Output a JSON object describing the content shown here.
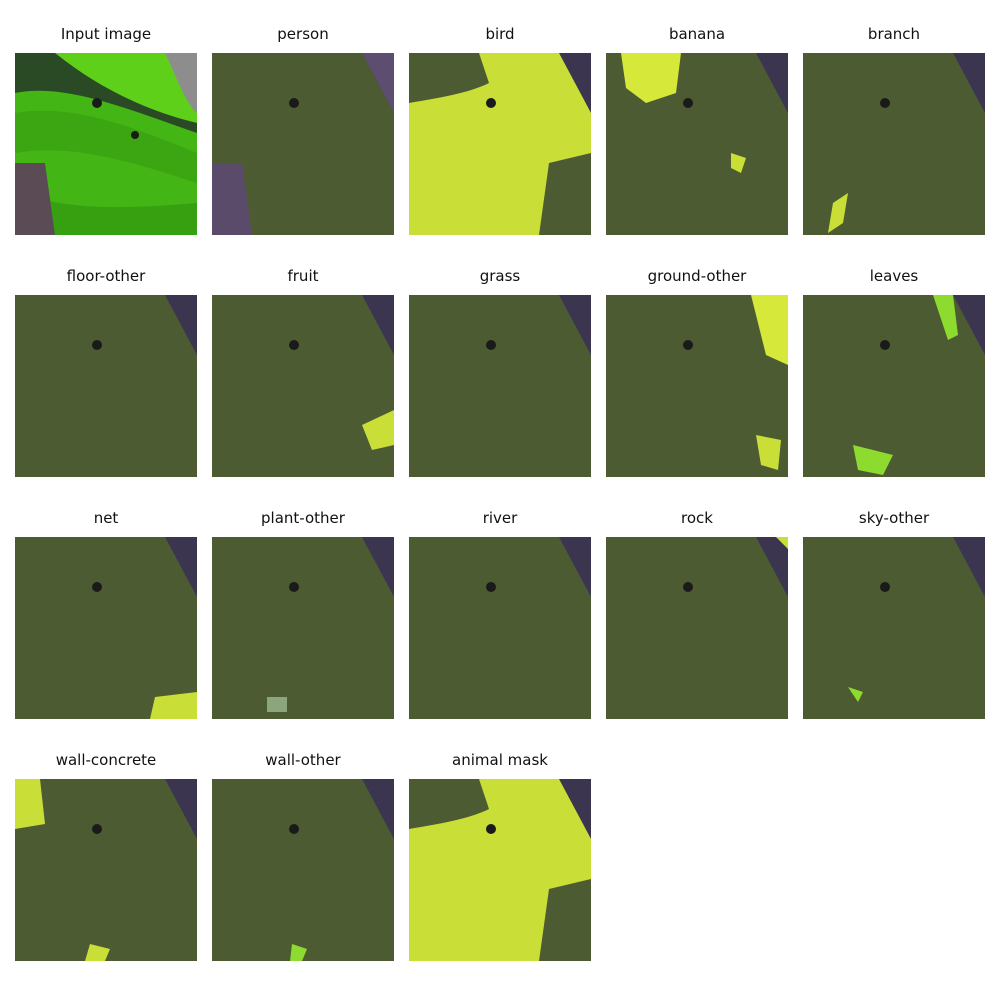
{
  "panels": [
    {
      "title": "Input image",
      "kind": "input"
    },
    {
      "title": "person",
      "kind": "mask"
    },
    {
      "title": "bird",
      "kind": "mask"
    },
    {
      "title": "banana",
      "kind": "mask"
    },
    {
      "title": "branch",
      "kind": "mask"
    },
    {
      "title": "floor-other",
      "kind": "mask"
    },
    {
      "title": "fruit",
      "kind": "mask"
    },
    {
      "title": "grass",
      "kind": "mask"
    },
    {
      "title": "ground-other",
      "kind": "mask"
    },
    {
      "title": "leaves",
      "kind": "mask"
    },
    {
      "title": "net",
      "kind": "mask"
    },
    {
      "title": "plant-other",
      "kind": "mask"
    },
    {
      "title": "river",
      "kind": "mask"
    },
    {
      "title": "rock",
      "kind": "mask"
    },
    {
      "title": "sky-other",
      "kind": "mask"
    },
    {
      "title": "wall-concrete",
      "kind": "mask"
    },
    {
      "title": "wall-other",
      "kind": "mask"
    },
    {
      "title": "animal mask",
      "kind": "mask"
    }
  ],
  "colors": {
    "snake_bright": "#3fbf12",
    "snake_dark": "#2f7d14",
    "overlay_bg": "#3b3550",
    "overlay_snake": "#4d5b33",
    "mask_highlight": "#d6e83a",
    "nest": "#7a5a8a"
  }
}
